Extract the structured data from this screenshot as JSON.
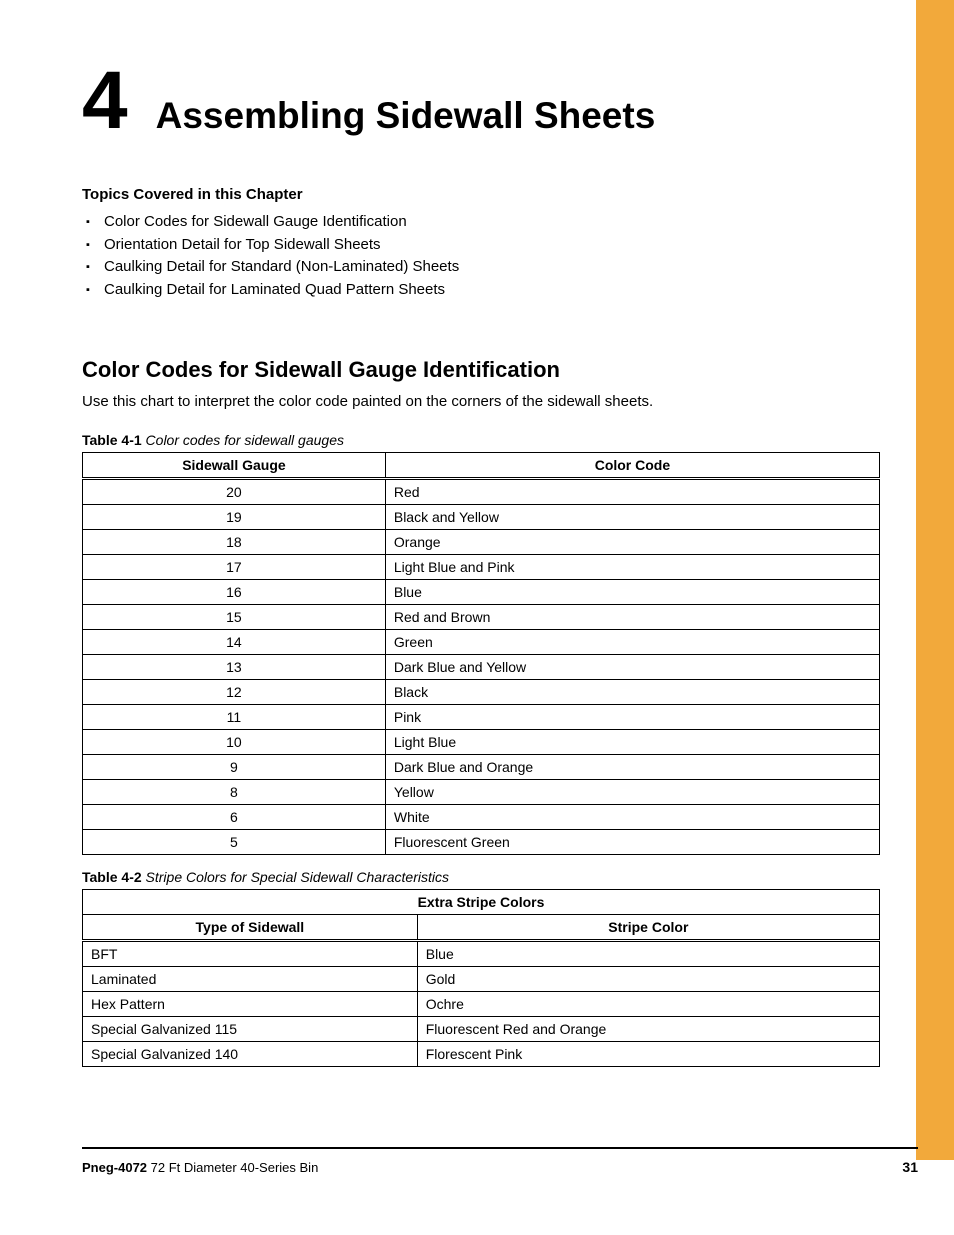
{
  "colors": {
    "accent_bar": "#f2a93b",
    "text": "#000000",
    "background": "#ffffff",
    "border": "#000000"
  },
  "chapter": {
    "number": "4",
    "title": "Assembling Sidewall Sheets"
  },
  "topics": {
    "heading": "Topics Covered in this Chapter",
    "items": [
      "Color Codes for Sidewall Gauge Identification",
      "Orientation Detail for Top Sidewall Sheets",
      "Caulking Detail for Standard (Non-Laminated) Sheets",
      "Caulking Detail for Laminated Quad Pattern Sheets"
    ]
  },
  "section": {
    "heading": "Color Codes for Sidewall Gauge Identification",
    "intro": "Use this chart to interpret the color code painted on the corners of the sidewall sheets."
  },
  "table1": {
    "caption_label": "Table 4-1",
    "caption_desc": "Color codes for sidewall gauges",
    "columns": [
      "Sidewall Gauge",
      "Color Code"
    ],
    "col_widths_pct": [
      38,
      62
    ],
    "col_align": [
      "center",
      "left"
    ],
    "header_fontweight": "bold",
    "border_color": "#000000",
    "rows": [
      [
        "20",
        "Red"
      ],
      [
        "19",
        "Black and Yellow"
      ],
      [
        "18",
        "Orange"
      ],
      [
        "17",
        "Light Blue and Pink"
      ],
      [
        "16",
        "Blue"
      ],
      [
        "15",
        "Red and Brown"
      ],
      [
        "14",
        "Green"
      ],
      [
        "13",
        "Dark Blue and Yellow"
      ],
      [
        "12",
        "Black"
      ],
      [
        "11",
        "Pink"
      ],
      [
        "10",
        "Light Blue"
      ],
      [
        "9",
        "Dark Blue and Orange"
      ],
      [
        "8",
        "Yellow"
      ],
      [
        "6",
        "White"
      ],
      [
        "5",
        "Fluorescent Green"
      ]
    ]
  },
  "table2": {
    "caption_label": "Table 4-2",
    "caption_desc": "Stripe Colors for Special Sidewall Characteristics",
    "spanning_header": "Extra Stripe Colors",
    "columns": [
      "Type of Sidewall",
      "Stripe Color"
    ],
    "col_widths_pct": [
      42,
      58
    ],
    "col_align": [
      "left",
      "left"
    ],
    "header_fontweight": "bold",
    "border_color": "#000000",
    "rows": [
      [
        "BFT",
        "Blue"
      ],
      [
        "Laminated",
        "Gold"
      ],
      [
        "Hex Pattern",
        "Ochre"
      ],
      [
        "Special Galvanized 115",
        "Fluorescent Red and Orange"
      ],
      [
        "Special Galvanized 140",
        "Florescent Pink"
      ]
    ]
  },
  "footer": {
    "doc_id": "Pneg-4072",
    "doc_title": "72 Ft Diameter 40-Series Bin",
    "page": "31"
  }
}
